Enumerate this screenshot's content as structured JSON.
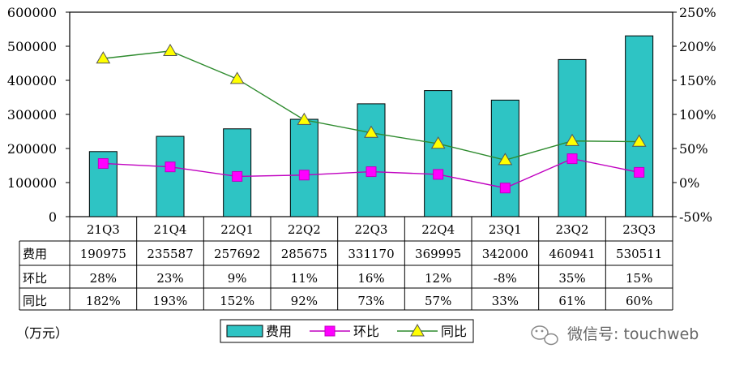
{
  "unit_label": "（万元）",
  "watermark": "微信号: touchweb",
  "colors": {
    "bar": "#2ec4c4",
    "qoq": "#c000c0",
    "qoq_marker": "#ff00ff",
    "yoy": "#2e8b2e",
    "yoy_marker": "#ffff00"
  },
  "chart_data": {
    "type": "bar",
    "categories": [
      "21Q3",
      "21Q4",
      "22Q1",
      "22Q2",
      "22Q3",
      "22Q4",
      "23Q1",
      "23Q2",
      "23Q3"
    ],
    "y_left": {
      "min": 0,
      "max": 600000,
      "ticks": [
        "0",
        "100000",
        "200000",
        "300000",
        "400000",
        "500000",
        "600000"
      ]
    },
    "y_right": {
      "min": -50,
      "max": 250,
      "ticks": [
        "-50%",
        "0%",
        "50%",
        "100%",
        "150%",
        "200%",
        "250%"
      ]
    },
    "grid": false,
    "legend_position": "bottom-center",
    "series": [
      {
        "name": "费用",
        "kind": "bar",
        "axis": "left",
        "values": [
          190975,
          235587,
          257692,
          285675,
          331170,
          369995,
          342000,
          460941,
          530511
        ],
        "labels": [
          "190975",
          "235587",
          "257692",
          "285675",
          "331170",
          "369995",
          "342000",
          "460941",
          "530511"
        ]
      },
      {
        "name": "环比",
        "kind": "line",
        "axis": "right",
        "values": [
          28,
          23,
          9,
          11,
          16,
          12,
          -8,
          35,
          15
        ],
        "labels": [
          "28%",
          "23%",
          "9%",
          "11%",
          "16%",
          "12%",
          "-8%",
          "35%",
          "15%"
        ]
      },
      {
        "name": "同比",
        "kind": "line",
        "axis": "right",
        "values": [
          182,
          193,
          152,
          92,
          73,
          57,
          33,
          61,
          60
        ],
        "labels": [
          "182%",
          "193%",
          "152%",
          "92%",
          "73%",
          "57%",
          "33%",
          "61%",
          "60%"
        ]
      }
    ]
  }
}
